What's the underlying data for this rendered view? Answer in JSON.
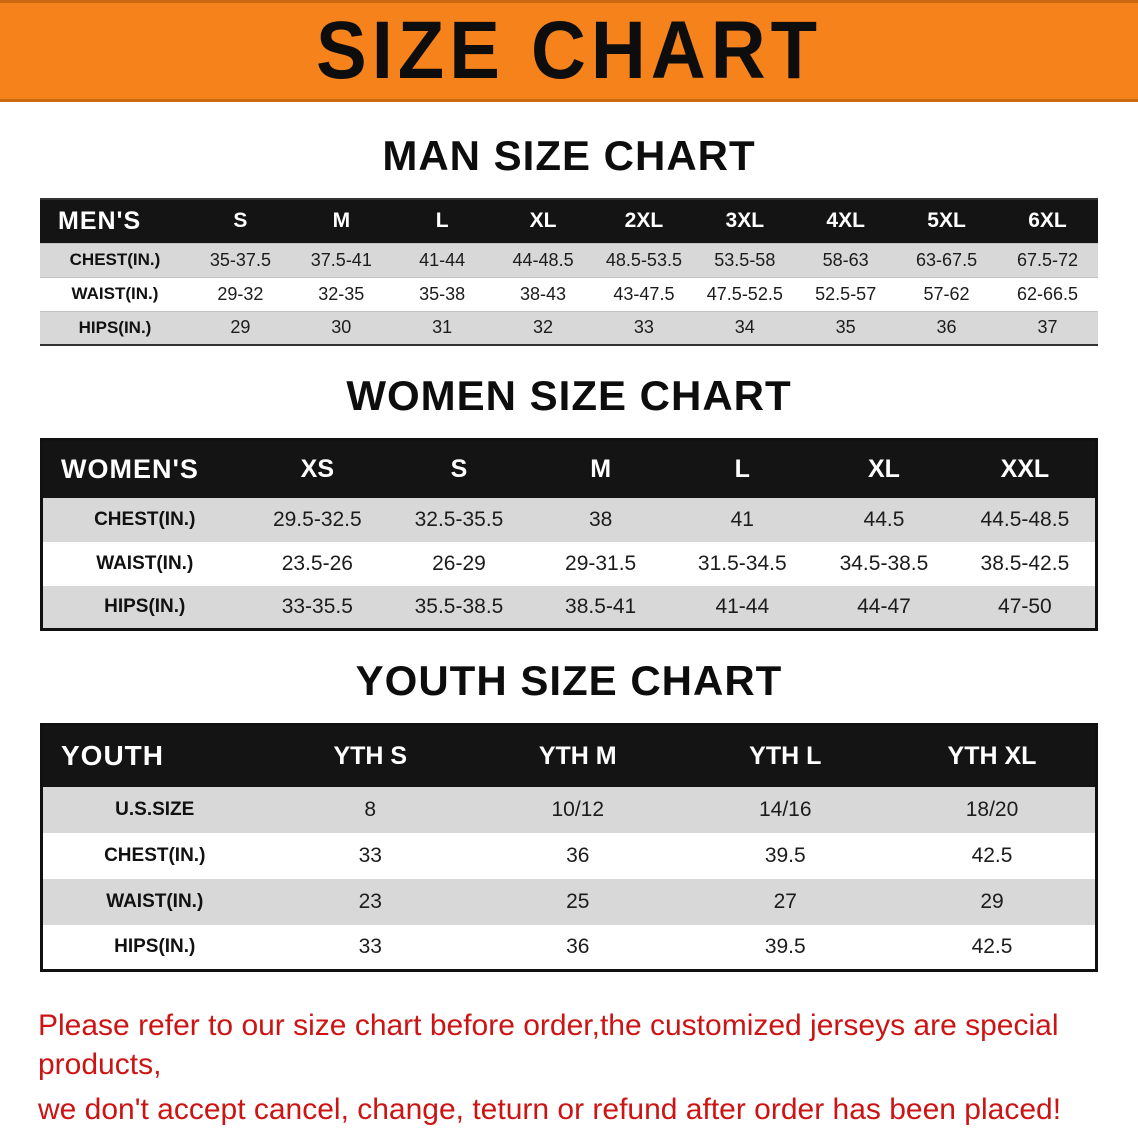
{
  "banner": {
    "title": "SIZE CHART"
  },
  "colors": {
    "banner_bg": "#f6821c",
    "table_header_bg": "#141414",
    "row_alt_gray": "#d8d8d8",
    "note_red": "#cc1414"
  },
  "men": {
    "heading": "MAN SIZE CHART",
    "label": "MEN'S",
    "columns": [
      "S",
      "M",
      "L",
      "XL",
      "2XL",
      "3XL",
      "4XL",
      "5XL",
      "6XL"
    ],
    "rows": [
      {
        "label": "CHEST(IN.)",
        "values": [
          "35-37.5",
          "37.5-41",
          "41-44",
          "44-48.5",
          "48.5-53.5",
          "53.5-58",
          "58-63",
          "63-67.5",
          "67.5-72"
        ]
      },
      {
        "label": "WAIST(IN.)",
        "values": [
          "29-32",
          "32-35",
          "35-38",
          "38-43",
          "43-47.5",
          "47.5-52.5",
          "52.5-57",
          "57-62",
          "62-66.5"
        ]
      },
      {
        "label": "HIPS(IN.)",
        "values": [
          "29",
          "30",
          "31",
          "32",
          "33",
          "34",
          "35",
          "36",
          "37"
        ]
      }
    ]
  },
  "women": {
    "heading": "WOMEN SIZE CHART",
    "label": "WOMEN'S",
    "columns": [
      "XS",
      "S",
      "M",
      "L",
      "XL",
      "XXL"
    ],
    "rows": [
      {
        "label": "CHEST(IN.)",
        "values": [
          "29.5-32.5",
          "32.5-35.5",
          "38",
          "41",
          "44.5",
          "44.5-48.5"
        ]
      },
      {
        "label": "WAIST(IN.)",
        "values": [
          "23.5-26",
          "26-29",
          "29-31.5",
          "31.5-34.5",
          "34.5-38.5",
          "38.5-42.5"
        ]
      },
      {
        "label": "HIPS(IN.)",
        "values": [
          "33-35.5",
          "35.5-38.5",
          "38.5-41",
          "41-44",
          "44-47",
          "47-50"
        ]
      }
    ]
  },
  "youth": {
    "heading": "YOUTH SIZE CHART",
    "label": "YOUTH",
    "columns": [
      "YTH S",
      "YTH M",
      "YTH L",
      "YTH XL"
    ],
    "rows": [
      {
        "label": "U.S.SIZE",
        "values": [
          "8",
          "10/12",
          "14/16",
          "18/20"
        ]
      },
      {
        "label": "CHEST(IN.)",
        "values": [
          "33",
          "36",
          "39.5",
          "42.5"
        ]
      },
      {
        "label": "WAIST(IN.)",
        "values": [
          "23",
          "25",
          "27",
          "29"
        ]
      },
      {
        "label": "HIPS(IN.)",
        "values": [
          "33",
          "36",
          "39.5",
          "42.5"
        ]
      }
    ]
  },
  "note": {
    "line1": "Please refer to our size chart before order,the customized jerseys are special products,",
    "line2": "we don't accept cancel, change, teturn or refund after order has been placed!"
  }
}
